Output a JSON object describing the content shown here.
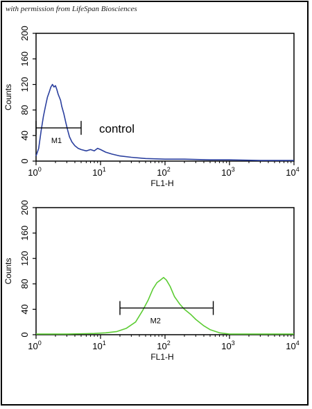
{
  "credit": "with permission from LifeSpan Biosciences",
  "chart_data": [
    {
      "type": "line",
      "xscale": "log",
      "xlim": [
        1,
        10000
      ],
      "ylim": [
        0,
        200
      ],
      "xlabel": "FL1-H",
      "ylabel": "Counts",
      "yticks": [
        0,
        40,
        80,
        120,
        160,
        200
      ],
      "ytick_labels": [
        "0",
        "40",
        "80",
        "120",
        "160",
        "200"
      ],
      "xticks": [
        {
          "value": 1,
          "base": "10",
          "exp": "0"
        },
        {
          "value": 10,
          "base": "10",
          "exp": "1"
        },
        {
          "value": 100,
          "base": "10",
          "exp": "2"
        },
        {
          "value": 1000,
          "base": "10",
          "exp": "3"
        },
        {
          "value": 10000,
          "base": "10",
          "exp": "4"
        }
      ],
      "color": "#2a3f9e",
      "annotation_text": "control",
      "marker": {
        "label": "M1",
        "from": 1,
        "to": 5,
        "y": 52
      },
      "series": [
        {
          "x": [
            1.0,
            1.1,
            1.2,
            1.3,
            1.4,
            1.5,
            1.6,
            1.7,
            1.8,
            1.9,
            2.0,
            2.1,
            2.2,
            2.3,
            2.4,
            2.5,
            2.7,
            2.9,
            3.1,
            3.3,
            3.6,
            4.0,
            4.5,
            5.0,
            6.0,
            7.0,
            8.0,
            9.0,
            10.0,
            12.0,
            15.0,
            20.0,
            30.0,
            50.0,
            100.0,
            200.0,
            500.0,
            1000.0,
            3000.0,
            10000.0
          ],
          "y": [
            8,
            20,
            48,
            70,
            86,
            100,
            108,
            116,
            120,
            116,
            118,
            112,
            105,
            100,
            95,
            86,
            74,
            60,
            48,
            38,
            30,
            24,
            20,
            18,
            16,
            18,
            16,
            20,
            18,
            14,
            11,
            8,
            6,
            4,
            3,
            3,
            2,
            2,
            1,
            1
          ]
        }
      ]
    },
    {
      "type": "line",
      "xscale": "log",
      "xlim": [
        1,
        10000
      ],
      "ylim": [
        0,
        200
      ],
      "xlabel": "FL1-H",
      "ylabel": "Counts",
      "yticks": [
        0,
        40,
        80,
        120,
        160,
        200
      ],
      "ytick_labels": [
        "0",
        "40",
        "80",
        "120",
        "160",
        "200"
      ],
      "xticks": [
        {
          "value": 1,
          "base": "10",
          "exp": "0"
        },
        {
          "value": 10,
          "base": "10",
          "exp": "1"
        },
        {
          "value": 100,
          "base": "10",
          "exp": "2"
        },
        {
          "value": 1000,
          "base": "10",
          "exp": "3"
        },
        {
          "value": 10000,
          "base": "10",
          "exp": "4"
        }
      ],
      "color": "#5ccc33",
      "annotation_text": "",
      "marker": {
        "label": "M2",
        "from": 20,
        "to": 560,
        "y": 42
      },
      "series": [
        {
          "x": [
            1.0,
            3.0,
            8.0,
            12.0,
            18.0,
            25.0,
            35.0,
            45.0,
            55.0,
            65.0,
            75.0,
            85.0,
            95.0,
            105.0,
            120.0,
            140.0,
            170.0,
            200.0,
            250.0,
            300.0,
            400.0,
            500.0,
            700.0,
            1000.0,
            3000.0,
            10000.0
          ],
          "y": [
            1,
            1,
            2,
            3,
            5,
            10,
            20,
            38,
            55,
            72,
            82,
            86,
            90,
            86,
            76,
            60,
            48,
            40,
            32,
            24,
            14,
            8,
            3,
            1,
            1,
            1
          ]
        }
      ]
    }
  ]
}
